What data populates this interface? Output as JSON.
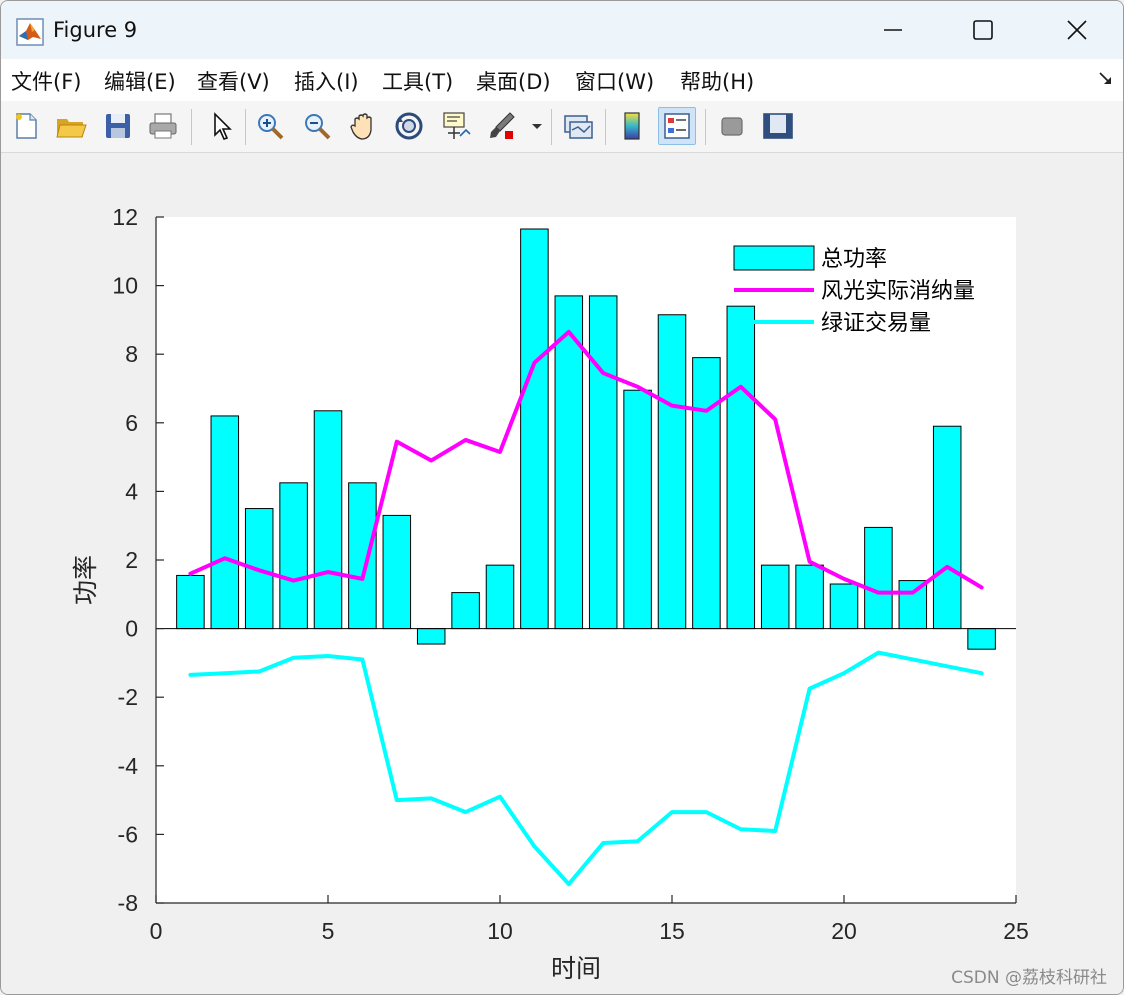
{
  "window": {
    "title": "Figure 9",
    "icons": {
      "app": "matlab-logo-icon",
      "minimize": "minimize-icon",
      "maximize": "maximize-icon",
      "close": "close-icon"
    }
  },
  "menu": [
    {
      "label": "文件(F)",
      "mnemonic": "F"
    },
    {
      "label": "编辑(E)",
      "mnemonic": "E"
    },
    {
      "label": "查看(V)",
      "mnemonic": "V"
    },
    {
      "label": "插入(I)",
      "mnemonic": "I"
    },
    {
      "label": "工具(T)",
      "mnemonic": "T"
    },
    {
      "label": "桌面(D)",
      "mnemonic": "D"
    },
    {
      "label": "窗口(W)",
      "mnemonic": "W"
    },
    {
      "label": "帮助(H)",
      "mnemonic": "H"
    }
  ],
  "toolbar": [
    "new-figure-icon",
    "open-file-icon",
    "save-icon",
    "print-icon",
    "select-arrow-icon",
    "zoom-in-icon",
    "zoom-out-icon",
    "pan-hand-icon",
    "rotate-3d-icon",
    "data-cursor-icon",
    "brush-icon",
    "link-plot-icon",
    "colorbar-icon",
    "legend-icon",
    "hide-plot-tools-icon",
    "show-plot-tools-icon"
  ],
  "chart_data": {
    "type": "bar+line",
    "title": "",
    "xlabel": "时间",
    "ylabel": "功率",
    "xlim": [
      0,
      25
    ],
    "ylim": [
      -8,
      12
    ],
    "xticks": [
      0,
      5,
      10,
      15,
      20,
      25
    ],
    "yticks": [
      -8,
      -6,
      -4,
      -2,
      0,
      2,
      4,
      6,
      8,
      10,
      12
    ],
    "grid": false,
    "legend_position": "top-right",
    "x": [
      1,
      2,
      3,
      4,
      5,
      6,
      7,
      8,
      9,
      10,
      11,
      12,
      13,
      14,
      15,
      16,
      17,
      18,
      19,
      20,
      21,
      22,
      23,
      24
    ],
    "series": [
      {
        "name": "总功率",
        "kind": "bar",
        "color": "#00ffff",
        "values": [
          1.55,
          6.2,
          3.5,
          4.25,
          6.35,
          4.25,
          3.3,
          -0.45,
          1.05,
          1.85,
          11.65,
          9.7,
          9.7,
          6.95,
          9.15,
          7.9,
          9.4,
          1.85,
          1.85,
          1.3,
          2.95,
          1.4,
          5.9,
          -0.6
        ]
      },
      {
        "name": "风光实际消纳量",
        "kind": "line",
        "color": "#ff00ff",
        "values": [
          1.6,
          2.05,
          1.7,
          1.4,
          1.65,
          1.45,
          5.45,
          4.9,
          5.5,
          5.15,
          7.75,
          8.65,
          7.45,
          7.05,
          6.5,
          6.35,
          7.05,
          6.1,
          1.95,
          1.45,
          1.05,
          1.05,
          1.8,
          1.2
        ]
      },
      {
        "name": "绿证交易量",
        "kind": "line",
        "color": "#00ffff",
        "values": [
          -1.35,
          -1.3,
          -1.25,
          -0.85,
          -0.8,
          -0.9,
          -5.0,
          -4.95,
          -5.35,
          -4.9,
          -6.35,
          -7.45,
          -6.25,
          -6.2,
          -5.35,
          -5.35,
          -5.85,
          -5.9,
          -1.75,
          -1.3,
          -0.7,
          -0.9,
          -1.1,
          -1.3
        ]
      }
    ]
  },
  "watermark": "CSDN @荔枝科研社"
}
